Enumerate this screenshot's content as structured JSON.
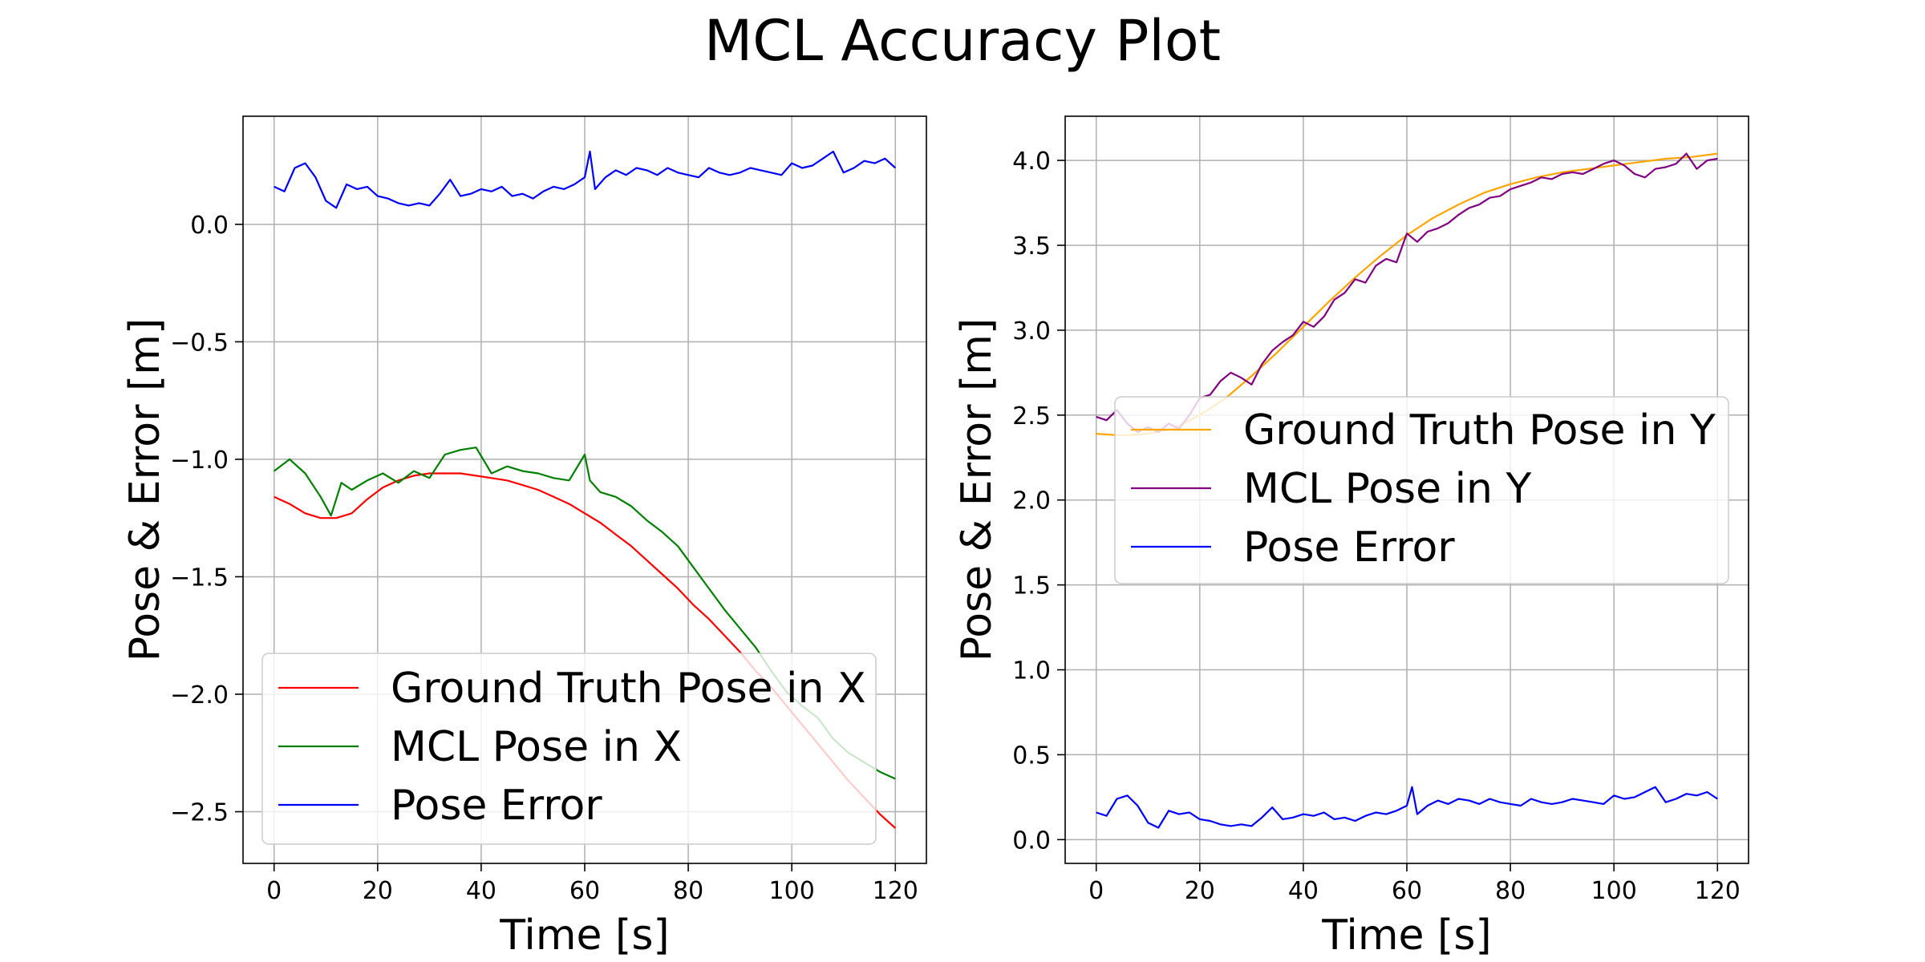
{
  "figure": {
    "title": "MCL Accuracy Plot"
  },
  "chart_data": [
    {
      "type": "line",
      "title": "",
      "xlabel": "Time [s]",
      "ylabel": "Pose & Error [m]",
      "xlim": [
        -6,
        126
      ],
      "ylim": [
        -2.72,
        0.46
      ],
      "xticks": [
        0,
        20,
        40,
        60,
        80,
        100,
        120
      ],
      "xtick_labels": [
        "0",
        "20",
        "40",
        "60",
        "80",
        "100",
        "120"
      ],
      "yticks": [
        0.0,
        -0.5,
        -1.0,
        -1.5,
        -2.0,
        -2.5
      ],
      "ytick_labels": [
        "0.0",
        "−0.5",
        "−1.0",
        "−1.5",
        "−2.0",
        "−2.5"
      ],
      "grid": true,
      "legend": "lower left",
      "series": [
        {
          "name": "Ground Truth Pose in X",
          "color": "#ff0000",
          "x": [
            0,
            3,
            6,
            9,
            12,
            15,
            18,
            21,
            24,
            27,
            30,
            33,
            36,
            39,
            42,
            45,
            48,
            51,
            54,
            57,
            60,
            63,
            66,
            69,
            72,
            75,
            78,
            81,
            84,
            87,
            90,
            93,
            96,
            99,
            102,
            105,
            108,
            111,
            114,
            117,
            120
          ],
          "values": [
            -1.16,
            -1.19,
            -1.23,
            -1.25,
            -1.25,
            -1.23,
            -1.17,
            -1.12,
            -1.09,
            -1.07,
            -1.06,
            -1.06,
            -1.06,
            -1.07,
            -1.08,
            -1.09,
            -1.11,
            -1.13,
            -1.16,
            -1.19,
            -1.23,
            -1.27,
            -1.32,
            -1.37,
            -1.43,
            -1.49,
            -1.55,
            -1.62,
            -1.68,
            -1.75,
            -1.82,
            -1.9,
            -1.97,
            -2.05,
            -2.13,
            -2.21,
            -2.29,
            -2.37,
            -2.44,
            -2.51,
            -2.57
          ]
        },
        {
          "name": "MCL Pose in X",
          "color": "#008000",
          "x": [
            0,
            3,
            6,
            9,
            11,
            13,
            15,
            18,
            21,
            24,
            27,
            30,
            33,
            36,
            39,
            42,
            45,
            48,
            51,
            54,
            57,
            60,
            61,
            63,
            66,
            69,
            72,
            75,
            78,
            81,
            84,
            87,
            90,
            93,
            96,
            99,
            102,
            105,
            108,
            111,
            114,
            117,
            120
          ],
          "values": [
            -1.05,
            -1.0,
            -1.06,
            -1.16,
            -1.24,
            -1.1,
            -1.13,
            -1.09,
            -1.06,
            -1.1,
            -1.05,
            -1.08,
            -0.98,
            -0.96,
            -0.95,
            -1.06,
            -1.03,
            -1.05,
            -1.06,
            -1.08,
            -1.09,
            -0.98,
            -1.09,
            -1.14,
            -1.16,
            -1.2,
            -1.26,
            -1.31,
            -1.37,
            -1.46,
            -1.55,
            -1.64,
            -1.72,
            -1.8,
            -1.9,
            -1.99,
            -2.05,
            -2.1,
            -2.19,
            -2.25,
            -2.29,
            -2.33,
            -2.36
          ]
        },
        {
          "name": "Pose Error",
          "color": "#0000ff",
          "x": [
            0,
            2,
            4,
            6,
            8,
            10,
            12,
            14,
            16,
            18,
            20,
            22,
            24,
            26,
            28,
            30,
            32,
            34,
            36,
            38,
            40,
            42,
            44,
            46,
            48,
            50,
            52,
            54,
            56,
            58,
            60,
            61,
            62,
            64,
            66,
            68,
            70,
            72,
            74,
            76,
            78,
            80,
            82,
            84,
            86,
            88,
            90,
            92,
            94,
            96,
            98,
            100,
            102,
            104,
            106,
            108,
            110,
            112,
            114,
            116,
            118,
            120
          ],
          "values": [
            0.16,
            0.14,
            0.24,
            0.26,
            0.2,
            0.1,
            0.07,
            0.17,
            0.15,
            0.16,
            0.12,
            0.11,
            0.09,
            0.08,
            0.09,
            0.08,
            0.13,
            0.19,
            0.12,
            0.13,
            0.15,
            0.14,
            0.16,
            0.12,
            0.13,
            0.11,
            0.14,
            0.16,
            0.15,
            0.17,
            0.2,
            0.31,
            0.15,
            0.2,
            0.23,
            0.21,
            0.24,
            0.23,
            0.21,
            0.24,
            0.22,
            0.21,
            0.2,
            0.24,
            0.22,
            0.21,
            0.22,
            0.24,
            0.23,
            0.22,
            0.21,
            0.26,
            0.24,
            0.25,
            0.28,
            0.31,
            0.22,
            0.24,
            0.27,
            0.26,
            0.28,
            0.24
          ]
        }
      ]
    },
    {
      "type": "line",
      "title": "",
      "xlabel": "Time [s]",
      "ylabel": "Pose & Error [m]",
      "xlim": [
        -6,
        126
      ],
      "ylim": [
        -0.14,
        4.26
      ],
      "xticks": [
        0,
        20,
        40,
        60,
        80,
        100,
        120
      ],
      "xtick_labels": [
        "0",
        "20",
        "40",
        "60",
        "80",
        "100",
        "120"
      ],
      "yticks": [
        0.0,
        0.5,
        1.0,
        1.5,
        2.0,
        2.5,
        3.0,
        3.5,
        4.0
      ],
      "ytick_labels": [
        "0.0",
        "0.5",
        "1.0",
        "1.5",
        "2.0",
        "2.5",
        "3.0",
        "3.5",
        "4.0"
      ],
      "grid": true,
      "legend": "center right",
      "series": [
        {
          "name": "Ground Truth Pose in Y",
          "color": "#ffa500",
          "x": [
            0,
            5,
            10,
            15,
            20,
            25,
            30,
            35,
            40,
            45,
            50,
            55,
            60,
            65,
            70,
            75,
            80,
            85,
            90,
            95,
            100,
            105,
            110,
            115,
            120
          ],
          "values": [
            2.39,
            2.38,
            2.39,
            2.42,
            2.5,
            2.6,
            2.73,
            2.87,
            3.02,
            3.17,
            3.31,
            3.44,
            3.56,
            3.66,
            3.74,
            3.81,
            3.86,
            3.9,
            3.93,
            3.95,
            3.97,
            3.99,
            4.01,
            4.02,
            4.04
          ]
        },
        {
          "name": "MCL Pose in Y",
          "color": "#800080",
          "x": [
            0,
            2,
            4,
            6,
            8,
            10,
            12,
            14,
            16,
            18,
            20,
            22,
            24,
            26,
            28,
            30,
            32,
            34,
            36,
            38,
            40,
            42,
            44,
            46,
            48,
            50,
            52,
            54,
            56,
            58,
            60,
            62,
            64,
            66,
            68,
            70,
            72,
            74,
            76,
            78,
            80,
            82,
            84,
            86,
            88,
            90,
            92,
            94,
            96,
            98,
            100,
            102,
            104,
            106,
            108,
            110,
            112,
            114,
            116,
            118,
            120
          ],
          "values": [
            2.49,
            2.47,
            2.53,
            2.45,
            2.4,
            2.43,
            2.4,
            2.45,
            2.42,
            2.5,
            2.6,
            2.62,
            2.7,
            2.75,
            2.72,
            2.68,
            2.8,
            2.88,
            2.93,
            2.97,
            3.05,
            3.02,
            3.08,
            3.18,
            3.22,
            3.3,
            3.28,
            3.38,
            3.42,
            3.4,
            3.57,
            3.52,
            3.58,
            3.6,
            3.63,
            3.68,
            3.72,
            3.74,
            3.78,
            3.79,
            3.83,
            3.85,
            3.87,
            3.9,
            3.89,
            3.92,
            3.93,
            3.92,
            3.95,
            3.98,
            4.0,
            3.97,
            3.92,
            3.9,
            3.95,
            3.96,
            3.98,
            4.04,
            3.95,
            4.0,
            4.01
          ]
        },
        {
          "name": "Pose Error",
          "color": "#0000ff",
          "x": [
            0,
            2,
            4,
            6,
            8,
            10,
            12,
            14,
            16,
            18,
            20,
            22,
            24,
            26,
            28,
            30,
            32,
            34,
            36,
            38,
            40,
            42,
            44,
            46,
            48,
            50,
            52,
            54,
            56,
            58,
            60,
            61,
            62,
            64,
            66,
            68,
            70,
            72,
            74,
            76,
            78,
            80,
            82,
            84,
            86,
            88,
            90,
            92,
            94,
            96,
            98,
            100,
            102,
            104,
            106,
            108,
            110,
            112,
            114,
            116,
            118,
            120
          ],
          "values": [
            0.16,
            0.14,
            0.24,
            0.26,
            0.2,
            0.1,
            0.07,
            0.17,
            0.15,
            0.16,
            0.12,
            0.11,
            0.09,
            0.08,
            0.09,
            0.08,
            0.13,
            0.19,
            0.12,
            0.13,
            0.15,
            0.14,
            0.16,
            0.12,
            0.13,
            0.11,
            0.14,
            0.16,
            0.15,
            0.17,
            0.2,
            0.31,
            0.15,
            0.2,
            0.23,
            0.21,
            0.24,
            0.23,
            0.21,
            0.24,
            0.22,
            0.21,
            0.2,
            0.24,
            0.22,
            0.21,
            0.22,
            0.24,
            0.23,
            0.22,
            0.21,
            0.26,
            0.24,
            0.25,
            0.28,
            0.31,
            0.22,
            0.24,
            0.27,
            0.26,
            0.28,
            0.24
          ]
        }
      ]
    }
  ]
}
